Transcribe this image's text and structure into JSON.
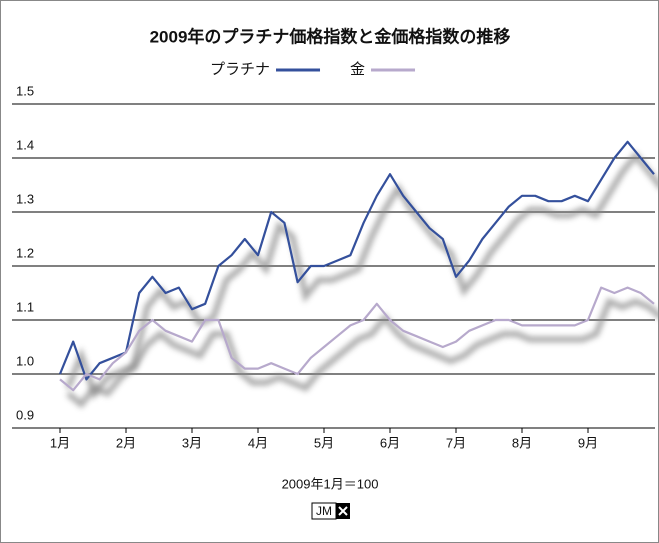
{
  "chart_data": {
    "type": "line",
    "title": "2009年のプラチナ価格指数と金価格指数の推移",
    "note": "2009年1月＝100",
    "logo_text": "JM",
    "categories": [
      "1月",
      null,
      null,
      null,
      null,
      "2月",
      null,
      null,
      null,
      null,
      "3月",
      null,
      null,
      null,
      null,
      "4月",
      null,
      null,
      null,
      null,
      "5月",
      null,
      null,
      null,
      null,
      "6月",
      null,
      null,
      null,
      null,
      "7月",
      null,
      null,
      null,
      null,
      "8月",
      null,
      null,
      null,
      null,
      "9月",
      null,
      null,
      null,
      null,
      null
    ],
    "series": [
      {
        "name": "プラチナ",
        "color": "#34509c",
        "values": [
          1.0,
          1.06,
          0.99,
          1.02,
          1.03,
          1.04,
          1.15,
          1.18,
          1.15,
          1.16,
          1.12,
          1.13,
          1.2,
          1.22,
          1.25,
          1.22,
          1.3,
          1.28,
          1.17,
          1.2,
          1.2,
          1.21,
          1.22,
          1.28,
          1.33,
          1.37,
          1.33,
          1.3,
          1.27,
          1.25,
          1.18,
          1.21,
          1.25,
          1.28,
          1.31,
          1.33,
          1.33,
          1.32,
          1.32,
          1.33,
          1.32,
          1.36,
          1.4,
          1.43,
          1.4,
          1.37
        ]
      },
      {
        "name": "金",
        "color": "#b7a9cc",
        "values": [
          0.99,
          0.97,
          1.0,
          0.99,
          1.02,
          1.04,
          1.08,
          1.1,
          1.08,
          1.07,
          1.06,
          1.1,
          1.1,
          1.03,
          1.01,
          1.01,
          1.02,
          1.01,
          1.0,
          1.03,
          1.05,
          1.07,
          1.09,
          1.1,
          1.13,
          1.1,
          1.08,
          1.07,
          1.06,
          1.05,
          1.06,
          1.08,
          1.09,
          1.1,
          1.1,
          1.09,
          1.09,
          1.09,
          1.09,
          1.09,
          1.1,
          1.16,
          1.15,
          1.16,
          1.15,
          1.13
        ]
      }
    ],
    "ylim": [
      0.9,
      1.5
    ],
    "yticks": [
      0.9,
      {
        "value": 1,
        "label": "1.0"
      },
      1.1,
      1.2,
      1.3,
      1.4,
      1.5
    ],
    "grid": true
  }
}
